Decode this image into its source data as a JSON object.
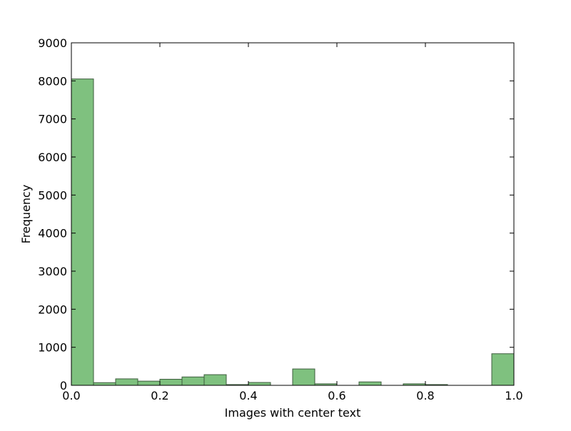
{
  "chart_data": {
    "type": "bar",
    "subtype": "histogram",
    "title": "",
    "xlabel": "Images with center text",
    "ylabel": "Frequency",
    "xlim": [
      0.0,
      1.0
    ],
    "ylim": [
      0,
      9000
    ],
    "x_ticks": [
      "0.0",
      "0.2",
      "0.4",
      "0.6",
      "0.8",
      "1.0"
    ],
    "y_ticks": [
      "0",
      "1000",
      "2000",
      "3000",
      "4000",
      "5000",
      "6000",
      "7000",
      "8000",
      "9000"
    ],
    "bin_edges": [
      0.0,
      0.05,
      0.1,
      0.15,
      0.2,
      0.25,
      0.3,
      0.35,
      0.4,
      0.45,
      0.5,
      0.55,
      0.6,
      0.65,
      0.7,
      0.75,
      0.8,
      0.85,
      0.9,
      0.95,
      1.0
    ],
    "values": [
      8050,
      70,
      170,
      110,
      160,
      220,
      280,
      20,
      75,
      0,
      430,
      40,
      0,
      90,
      0,
      40,
      20,
      0,
      0,
      830
    ],
    "bar_color": "#7fc17f",
    "bar_edge_color": "#3d5c3d",
    "grid": false,
    "legend": null
  }
}
